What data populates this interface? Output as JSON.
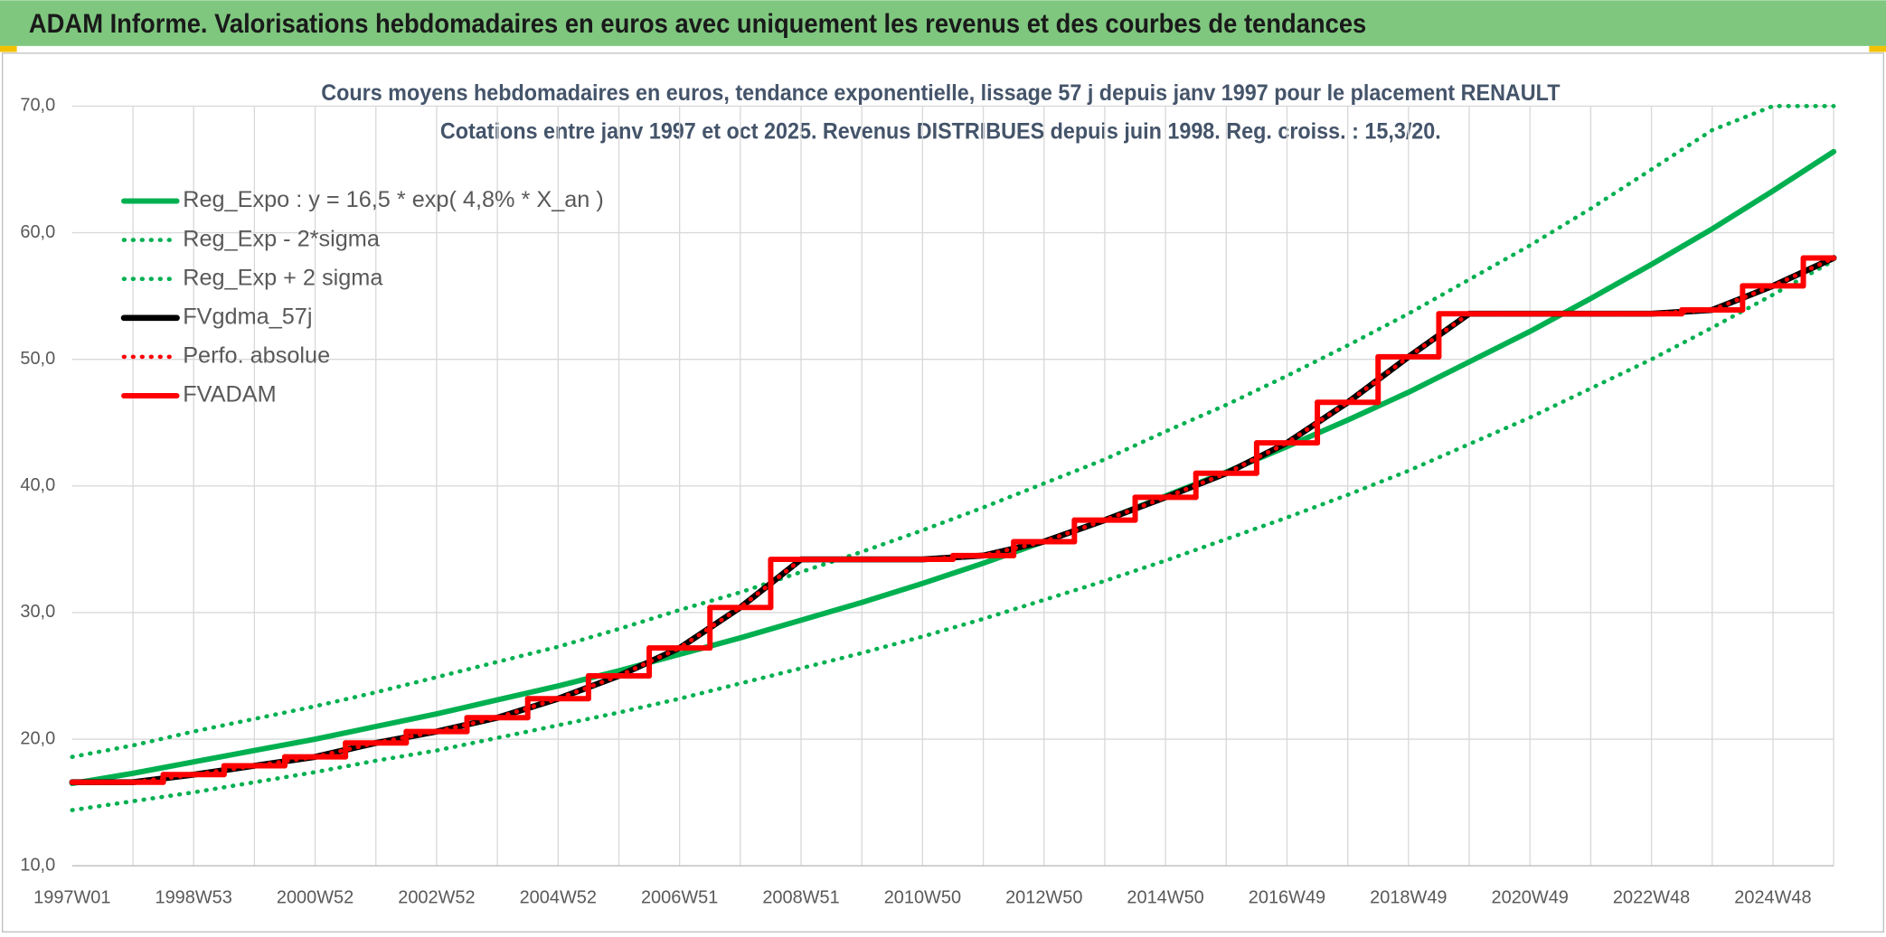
{
  "header": {
    "title": "ADAM Informe. Valorisations hebdomadaires en euros avec uniquement les revenus et des courbes de tendances"
  },
  "chart_data": {
    "type": "line",
    "title": "Cours moyens hebdomadaires en euros, tendance exponentielle, lissage 57 j depuis janv 1997 pour le placement RENAULT",
    "subtitle": "Cotations entre janv 1997 et oct 2025. Revenus DISTRIBUES depuis juin 1998. Reg. croiss. : 15,3/20.",
    "categories": [
      "1997W01",
      null,
      "1998W53",
      null,
      "2000W52",
      null,
      "2002W52",
      null,
      "2004W52",
      null,
      "2006W51",
      null,
      "2008W51",
      null,
      "2010W50",
      null,
      "2012W50",
      null,
      "2014W50",
      null,
      "2016W49",
      null,
      "2018W49",
      null,
      "2020W49",
      null,
      "2022W48",
      null,
      "2024W48",
      null
    ],
    "series": [
      {
        "name": "Reg_Expo : y = 16,5 * exp( 4,8% *  X_an )",
        "color": "#00b050",
        "style": "solid",
        "values": [
          16.5,
          17.3,
          18.2,
          19.1,
          20.0,
          21.0,
          22.0,
          23.1,
          24.2,
          25.4,
          26.7,
          28.0,
          29.4,
          30.8,
          32.3,
          33.9,
          35.6,
          37.3,
          39.2,
          41.1,
          43.1,
          45.2,
          47.4,
          49.8,
          52.2,
          54.8,
          57.5,
          60.3,
          63.3,
          66.4
        ]
      },
      {
        "name": "Reg_Exp - 2*sigma",
        "color": "#00b050",
        "style": "dotted",
        "values": [
          14.4,
          15.1,
          15.8,
          16.6,
          17.4,
          18.3,
          19.1,
          20.1,
          21.1,
          22.1,
          23.2,
          24.4,
          25.6,
          26.8,
          28.1,
          29.5,
          31.0,
          32.5,
          34.1,
          35.8,
          37.5,
          39.3,
          41.2,
          43.3,
          45.4,
          47.7,
          50.0,
          52.5,
          55.1,
          57.8
        ]
      },
      {
        "name": "Reg_Exp + 2 sigma",
        "color": "#00b050",
        "style": "dotted",
        "values": [
          18.6,
          19.5,
          20.6,
          21.6,
          22.6,
          23.7,
          24.9,
          26.1,
          27.3,
          28.7,
          30.2,
          31.6,
          33.2,
          34.8,
          36.5,
          38.3,
          40.2,
          42.1,
          44.3,
          46.4,
          48.7,
          51.1,
          53.6,
          56.3,
          59.0,
          61.9,
          65.0,
          68.1,
          70.0,
          70.0
        ]
      },
      {
        "name": "FVgdma_57j",
        "color": "#000000",
        "style": "solid",
        "values": [
          16.6,
          16.6,
          17.2,
          17.9,
          18.6,
          19.7,
          20.6,
          21.7,
          23.2,
          25.0,
          27.2,
          30.4,
          34.2,
          34.2,
          34.2,
          34.5,
          35.6,
          37.3,
          39.1,
          41.0,
          43.4,
          46.6,
          50.2,
          53.6,
          53.6,
          53.6,
          53.6,
          53.9,
          55.8,
          58.0
        ]
      },
      {
        "name": "Perfo. absolue",
        "color": "#ff0000",
        "style": "dotted",
        "values": [
          16.6,
          16.6,
          17.2,
          17.9,
          18.6,
          19.7,
          20.6,
          21.7,
          23.2,
          25.0,
          27.2,
          30.4,
          34.2,
          34.2,
          34.2,
          34.5,
          35.6,
          37.3,
          39.1,
          41.0,
          43.4,
          46.6,
          50.2,
          53.6,
          53.6,
          53.6,
          53.6,
          53.9,
          55.8,
          58.0
        ]
      },
      {
        "name": "FVADAM",
        "color": "#ff0000",
        "style": "solid",
        "step": true,
        "values": [
          16.6,
          16.6,
          17.2,
          17.9,
          18.6,
          19.7,
          20.6,
          21.7,
          23.2,
          25.0,
          27.2,
          30.4,
          34.2,
          34.2,
          34.2,
          34.5,
          35.6,
          37.3,
          39.1,
          41.0,
          43.4,
          46.6,
          50.2,
          53.6,
          53.6,
          53.6,
          53.6,
          53.9,
          55.8,
          58.0
        ]
      }
    ],
    "ylim": [
      10,
      70
    ],
    "yticks": [
      {
        "value": 10,
        "label": "10,0"
      },
      {
        "value": 20,
        "label": "20,0"
      },
      {
        "value": 30,
        "label": "30,0"
      },
      {
        "value": 40,
        "label": "40,0"
      },
      {
        "value": 50,
        "label": "50,0"
      },
      {
        "value": 60,
        "label": "60,0"
      },
      {
        "value": 70,
        "label": "70,0"
      }
    ],
    "grid": true,
    "legend": "top-left"
  }
}
